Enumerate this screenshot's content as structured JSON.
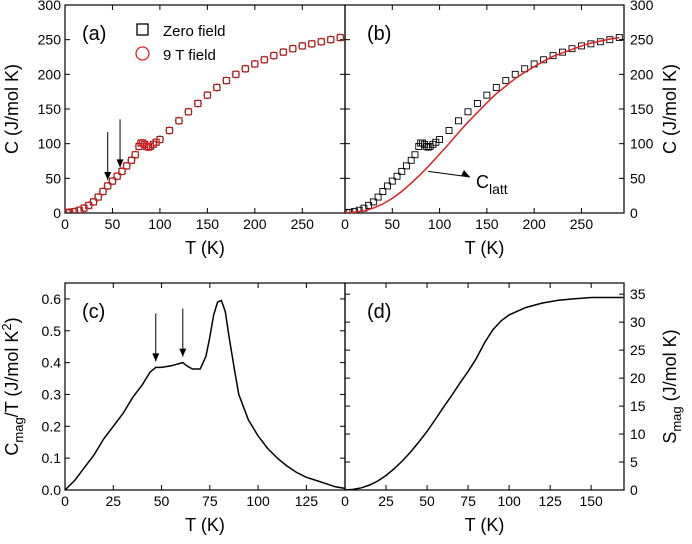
{
  "colors": {
    "zero_field": "#000000",
    "nine_tesla": "#e02020",
    "latt_curve": "#e02020",
    "axis": "#000000"
  },
  "chart_data": [
    {
      "panel": "(a)",
      "type": "scatter",
      "xlabel": "T (K)",
      "ylabel": "C (J/mol K)",
      "xlim": [
        0,
        295
      ],
      "ylim": [
        0,
        300
      ],
      "xticks": [
        0,
        50,
        100,
        150,
        200,
        250
      ],
      "yticks": [
        0,
        50,
        100,
        150,
        200,
        250,
        300
      ],
      "yaxis_side": "left",
      "legend": {
        "placement": "top-center",
        "entries": [
          {
            "label": "Zero field",
            "marker": "square-icon",
            "color": "#000000"
          },
          {
            "label": "9 T field",
            "marker": "circle-icon",
            "color": "#e02020"
          }
        ]
      },
      "arrows_at_x": [
        45,
        58
      ],
      "series": [
        {
          "name": "Zero field",
          "marker": "square",
          "color": "#000000",
          "x": [
            2,
            5,
            10,
            15,
            20,
            25,
            30,
            35,
            40,
            45,
            50,
            55,
            60,
            65,
            70,
            74,
            78,
            80,
            82,
            84,
            86,
            88,
            90,
            93,
            96,
            100,
            110,
            120,
            130,
            140,
            150,
            160,
            170,
            180,
            190,
            200,
            210,
            220,
            230,
            240,
            250,
            260,
            270,
            280,
            290
          ],
          "y": [
            0.5,
            1,
            2,
            4,
            7,
            11,
            16,
            23,
            31,
            39,
            46,
            53,
            60,
            68,
            76,
            84,
            96,
            101,
            101,
            99,
            96,
            95,
            96,
            99,
            102,
            106,
            119,
            133,
            146,
            158,
            170,
            181,
            191,
            200,
            208,
            215,
            221,
            227,
            232,
            237,
            241,
            244,
            247,
            250,
            253
          ]
        },
        {
          "name": "9 T field",
          "marker": "circle",
          "color": "#e02020",
          "x": [
            2,
            5,
            10,
            15,
            20,
            25,
            30,
            35,
            40,
            45,
            50,
            55,
            60,
            65,
            70,
            74,
            78,
            80,
            82,
            84,
            86,
            88,
            90,
            93,
            96,
            100,
            110,
            120,
            130,
            140,
            150,
            160,
            170,
            180,
            190,
            200,
            210,
            220,
            230,
            240,
            250,
            260,
            270,
            280,
            290
          ],
          "y": [
            0.5,
            1,
            2,
            4,
            7,
            11,
            16,
            23,
            31,
            39,
            46,
            53,
            60,
            68,
            76,
            84,
            96,
            101,
            101,
            99,
            96,
            95,
            96,
            99,
            102,
            106,
            119,
            133,
            146,
            158,
            170,
            181,
            191,
            200,
            208,
            215,
            221,
            227,
            232,
            237,
            241,
            244,
            247,
            250,
            253
          ]
        }
      ]
    },
    {
      "panel": "(b)",
      "type": "scatter",
      "xlabel": "T (K)",
      "ylabel": "C (J/mol K)",
      "xlim": [
        0,
        295
      ],
      "ylim": [
        0,
        300
      ],
      "xticks": [
        0,
        50,
        100,
        150,
        200,
        250
      ],
      "yticks": [
        0,
        50,
        100,
        150,
        200,
        250,
        300
      ],
      "yaxis_side": "right",
      "annotation": {
        "text": "C",
        "subscript": "latt"
      },
      "series": [
        {
          "name": "Zero field",
          "marker": "square",
          "color": "#000000",
          "x": [
            2,
            5,
            10,
            15,
            20,
            25,
            30,
            35,
            40,
            45,
            50,
            55,
            60,
            65,
            70,
            74,
            78,
            80,
            82,
            84,
            86,
            88,
            90,
            93,
            96,
            100,
            110,
            120,
            130,
            140,
            150,
            160,
            170,
            180,
            190,
            200,
            210,
            220,
            230,
            240,
            250,
            260,
            270,
            280,
            290
          ],
          "y": [
            0.5,
            1,
            2,
            4,
            7,
            11,
            16,
            23,
            31,
            39,
            46,
            53,
            60,
            68,
            76,
            84,
            96,
            101,
            101,
            99,
            96,
            95,
            96,
            99,
            102,
            106,
            119,
            133,
            146,
            158,
            170,
            181,
            191,
            200,
            208,
            215,
            221,
            227,
            232,
            237,
            241,
            244,
            247,
            250,
            253
          ]
        },
        {
          "name": "C latt",
          "marker": "line",
          "color": "#e02020",
          "x": [
            0,
            10,
            20,
            30,
            40,
            50,
            60,
            70,
            80,
            90,
            100,
            110,
            120,
            130,
            140,
            150,
            160,
            170,
            180,
            190,
            200,
            210,
            220,
            230,
            240,
            250,
            260,
            270,
            280,
            290
          ],
          "y": [
            0,
            1,
            3,
            7,
            13,
            21,
            31,
            43,
            56,
            70,
            85,
            100,
            116,
            131,
            145,
            159,
            172,
            183,
            194,
            203,
            211,
            219,
            226,
            231,
            236,
            241,
            245,
            248,
            251,
            253
          ]
        }
      ]
    },
    {
      "panel": "(c)",
      "type": "line",
      "xlabel": "T (K)",
      "ylabel_main": "C",
      "ylabel_sub": "mag",
      "ylabel_rest": "/T (J/mol K",
      "ylabel_sup": "2",
      "ylabel_end": ")",
      "xlim": [
        0,
        145
      ],
      "ylim": [
        0,
        0.65
      ],
      "xticks": [
        0,
        25,
        50,
        75,
        100,
        125
      ],
      "yticks": [
        0.0,
        0.1,
        0.2,
        0.3,
        0.4,
        0.5,
        0.6
      ],
      "yaxis_side": "left",
      "arrows_at_x": [
        47,
        61
      ],
      "series": [
        {
          "name": "",
          "color": "#000000",
          "x": [
            0,
            5,
            10,
            15,
            20,
            25,
            30,
            35,
            40,
            44,
            47,
            50,
            55,
            58,
            61,
            63,
            66,
            70,
            73,
            75,
            77,
            79,
            81,
            83,
            85,
            88,
            90,
            95,
            100,
            105,
            110,
            115,
            120,
            125,
            130,
            135,
            140,
            145
          ],
          "y": [
            0.0,
            0.03,
            0.07,
            0.11,
            0.16,
            0.2,
            0.24,
            0.29,
            0.33,
            0.37,
            0.385,
            0.385,
            0.39,
            0.395,
            0.4,
            0.39,
            0.38,
            0.38,
            0.42,
            0.48,
            0.55,
            0.59,
            0.595,
            0.56,
            0.48,
            0.37,
            0.3,
            0.22,
            0.17,
            0.13,
            0.1,
            0.075,
            0.055,
            0.04,
            0.03,
            0.02,
            0.01,
            0.005
          ]
        }
      ]
    },
    {
      "panel": "(d)",
      "type": "line",
      "xlabel": "T (K)",
      "ylabel_main": "S",
      "ylabel_sub": "mag",
      "ylabel_rest": " (J/mol K)",
      "xlim": [
        0,
        170
      ],
      "ylim": [
        0,
        37
      ],
      "xticks": [
        0,
        25,
        50,
        75,
        100,
        125,
        150
      ],
      "yticks": [
        0,
        5,
        10,
        15,
        20,
        25,
        30,
        35
      ],
      "yaxis_side": "right",
      "series": [
        {
          "name": "",
          "color": "#000000",
          "x": [
            0,
            5,
            10,
            15,
            20,
            25,
            30,
            35,
            40,
            45,
            50,
            55,
            60,
            65,
            70,
            75,
            80,
            85,
            90,
            95,
            100,
            110,
            120,
            130,
            140,
            150,
            160,
            170
          ],
          "y": [
            0,
            0.1,
            0.4,
            0.9,
            1.6,
            2.6,
            3.8,
            5.2,
            6.8,
            8.6,
            10.5,
            12.6,
            14.8,
            16.9,
            19.1,
            21.2,
            23.5,
            26.3,
            28.6,
            30.2,
            31.3,
            32.6,
            33.4,
            33.9,
            34.2,
            34.4,
            34.4,
            34.4
          ]
        }
      ]
    }
  ]
}
